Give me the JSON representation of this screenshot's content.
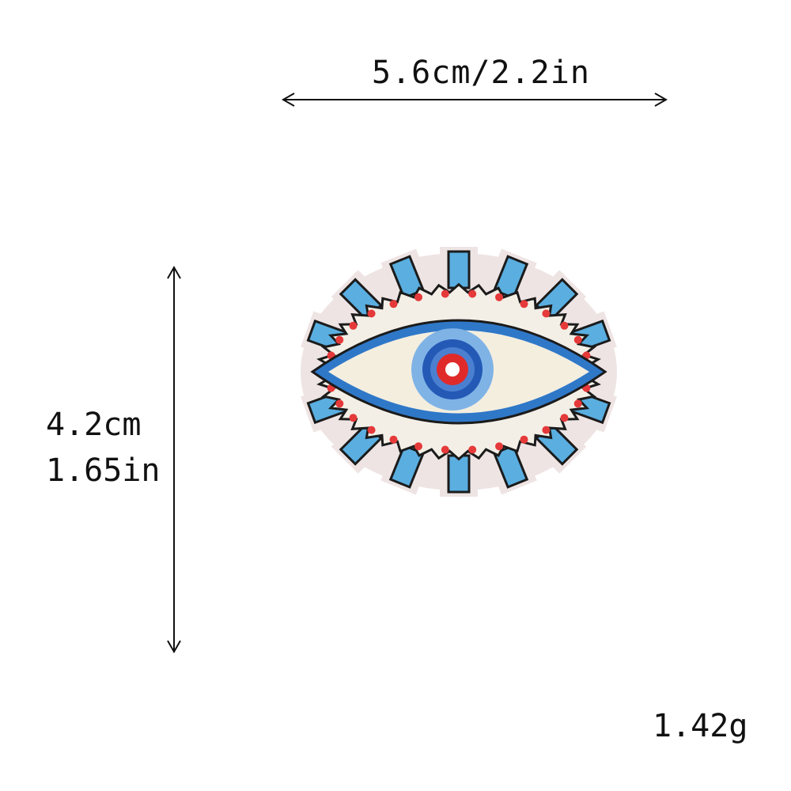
{
  "dimensions": {
    "width_label": "5.6cm/2.2in",
    "height_cm_label": "4.2cm",
    "height_in_label": "1.65in",
    "weight_label": "1.42g"
  },
  "product": {
    "icon": "evil-eye-patch-icon",
    "colors": {
      "backing": "#efe4e4",
      "lash_blue": "#5aaee0",
      "outline_dark": "#1b1b1b",
      "outer_ring_blue": "#2f78c8",
      "eye_white": "#f4eedf",
      "iris_light": "#7fb3e6",
      "iris_dark": "#2459b6",
      "pupil_red": "#e02a2a",
      "dot_red": "#e5393a"
    }
  }
}
